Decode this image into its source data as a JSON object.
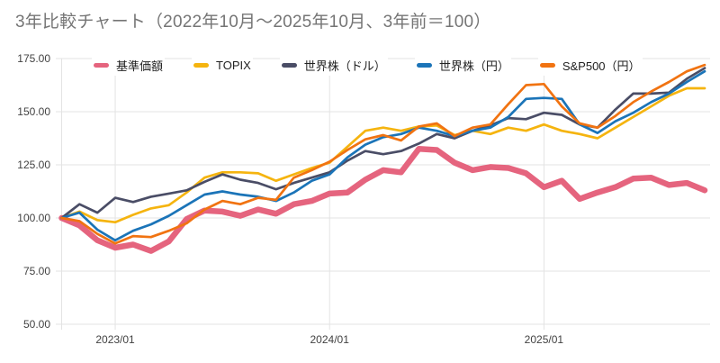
{
  "title": "3年比較チャート（2022年10月〜2025年10月、3年前＝100）",
  "colors": {
    "background": "#ffffff",
    "grid": "#e3e3e3",
    "axis_text": "#424242",
    "title_text": "#757575",
    "pink": "#e5647e",
    "yellow": "#f5b40f",
    "navy": "#4a4d66",
    "blue": "#1b74b8",
    "orange": "#f17311"
  },
  "legend": [
    {
      "label": "基準価額",
      "color": "#e5647e"
    },
    {
      "label": "TOPIX",
      "color": "#f5b40f"
    },
    {
      "label": "世界株（ドル）",
      "color": "#4a4d66"
    },
    {
      "label": "世界株（円）",
      "color": "#1b74b8"
    },
    {
      "label": "S&P500（円）",
      "color": "#f17311"
    }
  ],
  "axes": {
    "y_tick_labels": [
      "175.00",
      "150.00",
      "125.00",
      "100.00",
      "75.00",
      "50.00"
    ],
    "y_tick_values": [
      175,
      150,
      125,
      100,
      75,
      50
    ],
    "x_tick_labels": [
      "2023/01",
      "2024/01",
      "2025/01"
    ],
    "x_tick_indices": [
      3,
      15,
      27
    ]
  },
  "chart_data": {
    "type": "line",
    "title": "3年比較チャート（2022年10月〜2025年10月、3年前＝100）",
    "xlabel": "",
    "ylabel": "",
    "ylim": [
      50,
      175
    ],
    "grid": true,
    "legend_position": "top",
    "x": [
      "2022/10",
      "2022/11",
      "2022/12",
      "2023/01",
      "2023/02",
      "2023/03",
      "2023/04",
      "2023/05",
      "2023/06",
      "2023/07",
      "2023/08",
      "2023/09",
      "2023/10",
      "2023/11",
      "2023/12",
      "2024/01",
      "2024/02",
      "2024/03",
      "2024/04",
      "2024/05",
      "2024/06",
      "2024/07",
      "2024/08",
      "2024/09",
      "2024/10",
      "2024/11",
      "2024/12",
      "2025/01",
      "2025/02",
      "2025/03",
      "2025/04",
      "2025/05",
      "2025/06",
      "2025/07",
      "2025/08",
      "2025/09",
      "2025/10"
    ],
    "series": [
      {
        "name": "基準価額",
        "color": "#e5647e",
        "line_width": 6.5,
        "values": [
          100,
          96.5,
          89.5,
          86,
          87.5,
          84.5,
          89,
          99.5,
          103.5,
          103,
          101,
          104,
          102,
          106.5,
          108,
          111.5,
          112,
          118,
          122.5,
          121.5,
          132.5,
          132,
          126,
          122.5,
          124,
          123.5,
          121,
          114.5,
          117.5,
          109,
          112,
          114.5,
          118.5,
          119,
          115.5,
          116.5,
          113
        ]
      },
      {
        "name": "TOPIX",
        "color": "#f5b40f",
        "line_width": 2.7,
        "values": [
          100,
          103,
          99,
          98,
          101.5,
          104.5,
          106,
          112,
          119,
          121.5,
          121.5,
          121,
          117.5,
          120.5,
          123.5,
          126,
          133.5,
          141,
          142.5,
          141,
          143,
          143.5,
          139,
          141,
          139.5,
          142.5,
          141,
          144,
          141,
          139.5,
          137.5,
          142.5,
          147.5,
          152.5,
          157.5,
          161,
          161
        ]
      },
      {
        "name": "世界株（ドル）",
        "color": "#4a4d66",
        "line_width": 2.7,
        "values": [
          100,
          106.5,
          102.5,
          109.5,
          107.5,
          110,
          111.5,
          113,
          117,
          120.5,
          118,
          116.5,
          113.5,
          116.5,
          119,
          121.5,
          127,
          131.5,
          130,
          131.5,
          135,
          139.5,
          137.5,
          141,
          143.5,
          147,
          146.5,
          149.5,
          148.5,
          144,
          142.5,
          151,
          158.5,
          158.5,
          159,
          165.5,
          170.5
        ]
      },
      {
        "name": "世界株（円）",
        "color": "#1b74b8",
        "line_width": 2.7,
        "values": [
          100,
          102.5,
          94.5,
          89.5,
          94,
          97,
          101,
          106,
          111,
          112.5,
          111,
          110,
          108,
          112,
          117.5,
          120.5,
          128.5,
          134.5,
          138,
          139.5,
          142.5,
          141,
          138.5,
          141,
          142.5,
          147.5,
          156,
          156.5,
          156,
          144,
          140,
          145.5,
          149.5,
          154.5,
          158.5,
          164,
          169
        ]
      },
      {
        "name": "S&P500（円）",
        "color": "#f17311",
        "line_width": 2.7,
        "values": [
          100,
          98.5,
          92.5,
          88,
          91.5,
          91,
          94,
          97.5,
          104,
          108,
          106.5,
          109.5,
          108.5,
          119,
          122.5,
          126.5,
          132,
          137,
          139,
          136.5,
          143,
          144.5,
          138.5,
          142.5,
          144,
          153.5,
          162.5,
          163,
          152.5,
          144.5,
          142.5,
          148,
          154.5,
          159.5,
          164,
          169,
          172
        ]
      }
    ]
  }
}
